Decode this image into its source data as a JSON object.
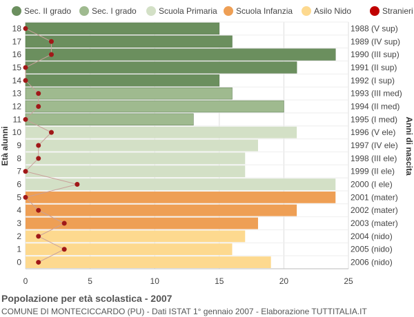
{
  "chart_data": {
    "type": "bar",
    "orientation": "horizontal",
    "title": "Popolazione per età scolastica - 2007",
    "subtitle": "COMUNE DI MONTECICCARDO (PU) - Dati ISTAT 1° gennaio 2007 - Elaborazione TUTTITALIA.IT",
    "ylabel_left": "Età alunni",
    "ylabel_right": "Anni di nascita",
    "xlim": [
      0,
      25
    ],
    "x_ticks": [
      0,
      5,
      10,
      15,
      20,
      25
    ],
    "grid": true,
    "legend_position": "top",
    "legend": [
      {
        "name": "Sec. II grado",
        "color": "#6b8f5e",
        "shape": "circle"
      },
      {
        "name": "Sec. I grado",
        "color": "#9fba8f",
        "shape": "circle"
      },
      {
        "name": "Scuola Primaria",
        "color": "#d3e0c6",
        "shape": "circle"
      },
      {
        "name": "Scuola Infanzia",
        "color": "#ee9f55",
        "shape": "circle"
      },
      {
        "name": "Asilo Nido",
        "color": "#fdd98f",
        "shape": "circle"
      },
      {
        "name": "Stranieri",
        "color": "#c00000",
        "shape": "circle"
      }
    ],
    "rows": [
      {
        "age": "18",
        "birth": "1988 (V sup)",
        "value": 15,
        "stranieri": 0,
        "group": 0
      },
      {
        "age": "17",
        "birth": "1989 (IV sup)",
        "value": 16,
        "stranieri": 2,
        "group": 0
      },
      {
        "age": "16",
        "birth": "1990 (III sup)",
        "value": 24,
        "stranieri": 2,
        "group": 0
      },
      {
        "age": "15",
        "birth": "1991 (II sup)",
        "value": 21,
        "stranieri": 0,
        "group": 0
      },
      {
        "age": "14",
        "birth": "1992 (I sup)",
        "value": 15,
        "stranieri": 0,
        "group": 0
      },
      {
        "age": "13",
        "birth": "1993 (III med)",
        "value": 16,
        "stranieri": 1,
        "group": 1
      },
      {
        "age": "12",
        "birth": "1994 (II med)",
        "value": 20,
        "stranieri": 1,
        "group": 1
      },
      {
        "age": "11",
        "birth": "1995 (I med)",
        "value": 13,
        "stranieri": 0,
        "group": 1
      },
      {
        "age": "10",
        "birth": "1996 (V ele)",
        "value": 21,
        "stranieri": 2,
        "group": 2
      },
      {
        "age": "9",
        "birth": "1997 (IV ele)",
        "value": 18,
        "stranieri": 1,
        "group": 2
      },
      {
        "age": "8",
        "birth": "1998 (III ele)",
        "value": 17,
        "stranieri": 1,
        "group": 2
      },
      {
        "age": "7",
        "birth": "1999 (II ele)",
        "value": 17,
        "stranieri": 0,
        "group": 2
      },
      {
        "age": "6",
        "birth": "2000 (I ele)",
        "value": 24,
        "stranieri": 4,
        "group": 2
      },
      {
        "age": "5",
        "birth": "2001 (mater)",
        "value": 24,
        "stranieri": 0,
        "group": 3
      },
      {
        "age": "4",
        "birth": "2002 (mater)",
        "value": 21,
        "stranieri": 1,
        "group": 3
      },
      {
        "age": "3",
        "birth": "2003 (mater)",
        "value": 18,
        "stranieri": 3,
        "group": 3
      },
      {
        "age": "2",
        "birth": "2004 (nido)",
        "value": 17,
        "stranieri": 1,
        "group": 4
      },
      {
        "age": "1",
        "birth": "2005 (nido)",
        "value": 16,
        "stranieri": 3,
        "group": 4
      },
      {
        "age": "0",
        "birth": "2006 (nido)",
        "value": 19,
        "stranieri": 1,
        "group": 4
      }
    ],
    "stranieri_line_color": "#c9a09a",
    "grid_color": "#dddddd",
    "axis_color": "#bbbbbb"
  }
}
